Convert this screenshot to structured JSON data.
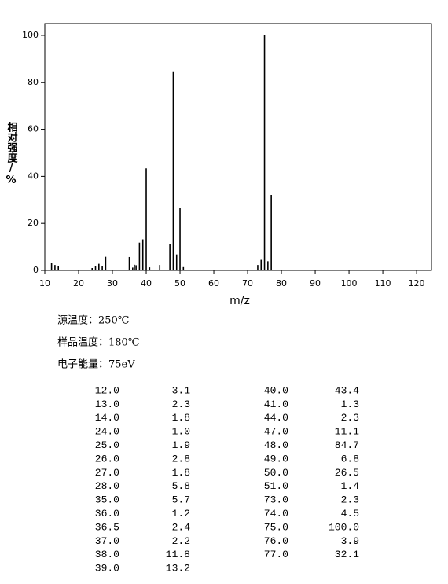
{
  "chart_data": {
    "type": "bar",
    "x_label": "m/z",
    "y_label": "相对强度/%",
    "x": [
      12,
      13,
      14,
      24,
      25,
      26,
      27,
      28,
      35,
      36,
      36.5,
      37,
      38,
      39,
      40,
      41,
      44,
      47,
      48,
      49,
      50,
      51,
      73,
      74,
      75,
      76,
      77
    ],
    "values": [
      3.1,
      2.3,
      1.8,
      1.0,
      1.9,
      2.8,
      1.8,
      5.8,
      5.7,
      1.2,
      2.4,
      2.2,
      11.8,
      13.2,
      43.4,
      1.3,
      2.3,
      11.1,
      84.7,
      6.8,
      26.5,
      1.4,
      2.3,
      4.5,
      100.0,
      3.9,
      32.1
    ],
    "color": "#000000",
    "xlim": [
      10,
      124.4
    ],
    "ylim": [
      0,
      105
    ],
    "xticks": [
      10,
      20,
      30,
      40,
      50,
      60,
      70,
      80,
      90,
      100,
      110,
      120
    ],
    "yticks": [
      0,
      20,
      40,
      60,
      80,
      100
    ]
  },
  "info": [
    "源温度：250℃",
    "样品温度：180℃",
    "电子能量：75eV"
  ],
  "table": {
    "left": [
      [
        "12.0",
        "3.1"
      ],
      [
        "13.0",
        "2.3"
      ],
      [
        "14.0",
        "1.8"
      ],
      [
        "24.0",
        "1.0"
      ],
      [
        "25.0",
        "1.9"
      ],
      [
        "26.0",
        "2.8"
      ],
      [
        "27.0",
        "1.8"
      ],
      [
        "28.0",
        "5.8"
      ],
      [
        "35.0",
        "5.7"
      ],
      [
        "36.0",
        "1.2"
      ],
      [
        "36.5",
        "2.4"
      ],
      [
        "37.0",
        "2.2"
      ],
      [
        "38.0",
        "11.8"
      ],
      [
        "39.0",
        "13.2"
      ]
    ],
    "right": [
      [
        "40.0",
        "43.4"
      ],
      [
        "41.0",
        "1.3"
      ],
      [
        "44.0",
        "2.3"
      ],
      [
        "47.0",
        "11.1"
      ],
      [
        "48.0",
        "84.7"
      ],
      [
        "49.0",
        "6.8"
      ],
      [
        "50.0",
        "26.5"
      ],
      [
        "51.0",
        "1.4"
      ],
      [
        "73.0",
        "2.3"
      ],
      [
        "74.0",
        "4.5"
      ],
      [
        "75.0",
        "100.0"
      ],
      [
        "76.0",
        "3.9"
      ],
      [
        "77.0",
        "32.1"
      ]
    ]
  }
}
